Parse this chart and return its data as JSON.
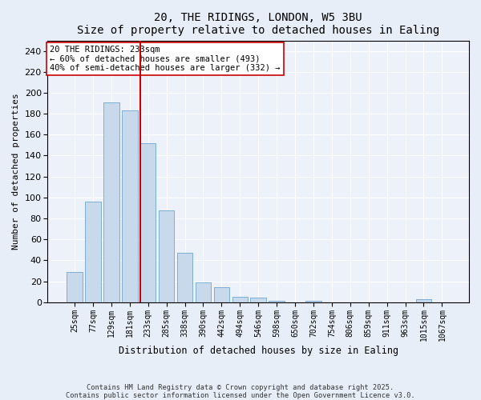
{
  "title": "20, THE RIDINGS, LONDON, W5 3BU",
  "subtitle": "Size of property relative to detached houses in Ealing",
  "xlabel": "Distribution of detached houses by size in Ealing",
  "ylabel": "Number of detached properties",
  "bar_labels": [
    "25sqm",
    "77sqm",
    "129sqm",
    "181sqm",
    "233sqm",
    "285sqm",
    "338sqm",
    "390sqm",
    "442sqm",
    "494sqm",
    "546sqm",
    "598sqm",
    "650sqm",
    "702sqm",
    "754sqm",
    "806sqm",
    "859sqm",
    "911sqm",
    "963sqm",
    "1015sqm",
    "1067sqm"
  ],
  "bar_values": [
    29,
    96,
    191,
    183,
    152,
    88,
    47,
    19,
    14,
    5,
    4,
    1,
    0,
    1,
    0,
    0,
    0,
    0,
    0,
    3,
    0
  ],
  "bar_color": "#c9d9ec",
  "bar_edge_color": "#7bafd4",
  "highlight_index": 4,
  "highlight_color": "#cc0000",
  "annotation_text": "20 THE RIDINGS: 233sqm\n← 60% of detached houses are smaller (493)\n40% of semi-detached houses are larger (332) →",
  "annotation_box_color": "#ffffff",
  "annotation_box_edge": "#cc0000",
  "ylim": [
    0,
    250
  ],
  "yticks": [
    0,
    20,
    40,
    60,
    80,
    100,
    120,
    140,
    160,
    180,
    200,
    220,
    240
  ],
  "footer_line1": "Contains HM Land Registry data © Crown copyright and database right 2025.",
  "footer_line2": "Contains public sector information licensed under the Open Government Licence v3.0.",
  "bg_color": "#e8eef8",
  "plot_bg_color": "#edf2fa"
}
